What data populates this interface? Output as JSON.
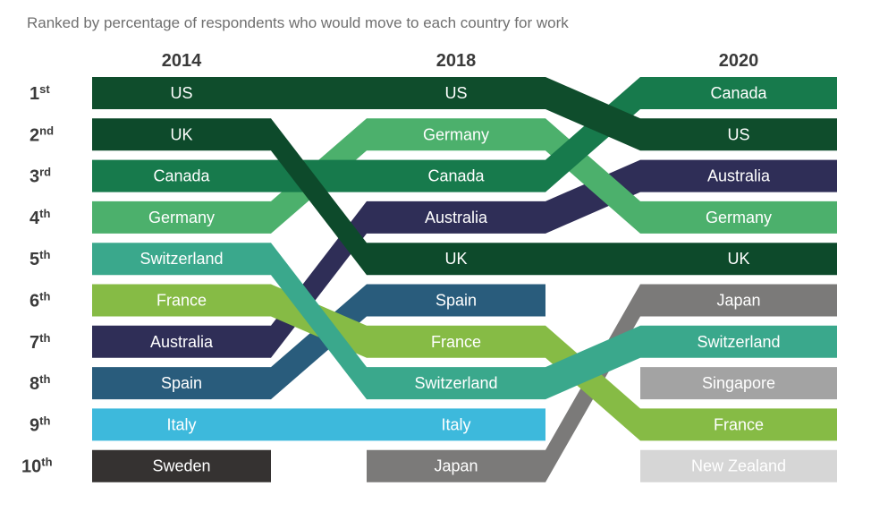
{
  "chart_data": {
    "type": "table",
    "subtitle": "Ranked by percentage of respondents who would move to each country for work",
    "years": [
      "2014",
      "2018",
      "2020"
    ],
    "ranks": [
      {
        "num": "1",
        "suffix": "st"
      },
      {
        "num": "2",
        "suffix": "nd"
      },
      {
        "num": "3",
        "suffix": "rd"
      },
      {
        "num": "4",
        "suffix": "th"
      },
      {
        "num": "5",
        "suffix": "th"
      },
      {
        "num": "6",
        "suffix": "th"
      },
      {
        "num": "7",
        "suffix": "th"
      },
      {
        "num": "8",
        "suffix": "th"
      },
      {
        "num": "9",
        "suffix": "th"
      },
      {
        "num": "10",
        "suffix": "th"
      }
    ],
    "countries": [
      {
        "name": "US",
        "color": "#0f4d2c",
        "ranks": [
          1,
          1,
          2
        ]
      },
      {
        "name": "UK",
        "color": "#0d4a2b",
        "ranks": [
          2,
          5,
          5
        ]
      },
      {
        "name": "Canada",
        "color": "#177a4c",
        "ranks": [
          3,
          3,
          1
        ]
      },
      {
        "name": "Germany",
        "color": "#4cb06c",
        "ranks": [
          4,
          2,
          4
        ]
      },
      {
        "name": "Switzerland",
        "color": "#3aa88c",
        "ranks": [
          5,
          8,
          7
        ]
      },
      {
        "name": "France",
        "color": "#86bb45",
        "ranks": [
          6,
          7,
          9
        ]
      },
      {
        "name": "Australia",
        "color": "#2f2e57",
        "ranks": [
          7,
          4,
          3
        ]
      },
      {
        "name": "Spain",
        "color": "#295c7c",
        "ranks": [
          8,
          6,
          null
        ]
      },
      {
        "name": "Italy",
        "color": "#3db9dc",
        "ranks": [
          9,
          9,
          null
        ]
      },
      {
        "name": "Sweden",
        "color": "#353231",
        "ranks": [
          10,
          null,
          null
        ]
      },
      {
        "name": "Japan",
        "color": "#7b7a79",
        "ranks": [
          null,
          10,
          6
        ]
      },
      {
        "name": "Singapore",
        "color": "#a3a3a3",
        "ranks": [
          null,
          null,
          8
        ]
      },
      {
        "name": "New Zealand",
        "color": "#d6d6d6",
        "ranks": [
          null,
          null,
          10
        ]
      }
    ]
  }
}
